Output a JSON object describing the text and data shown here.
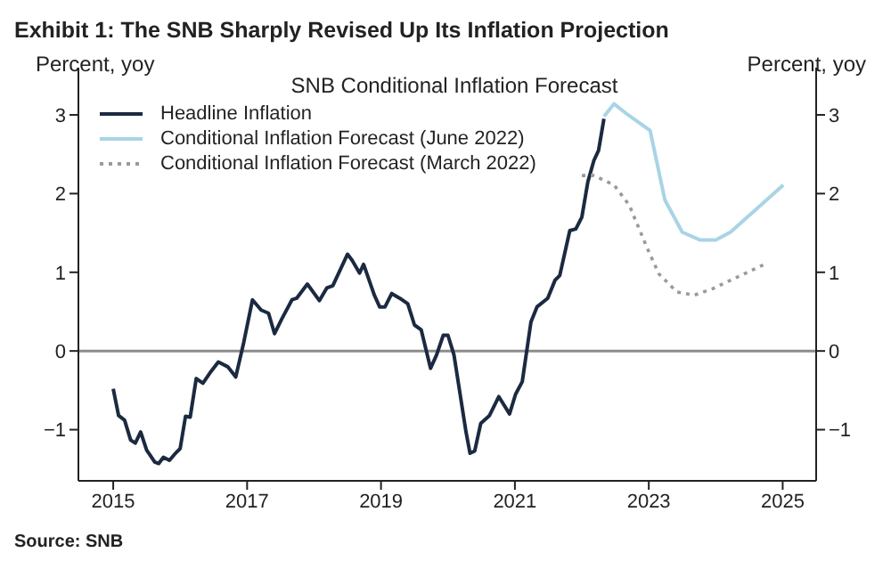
{
  "chart_data": {
    "type": "line",
    "title": "Exhibit 1: The SNB Sharply Revised Up Its Inflation Projection",
    "subtitle": "SNB Conditional Inflation Forecast",
    "ylabel": "Percent, yoy",
    "y2label": "Percent, yoy",
    "annotations": [
      "Source: SNB"
    ],
    "xlim": [
      2014.48,
      2025.5
    ],
    "xticks": [
      2015,
      2017,
      2019,
      2021,
      2023,
      2025
    ],
    "ylim": [
      -1.65,
      3.6
    ],
    "yticks": [
      -1,
      0,
      1,
      2,
      3
    ],
    "y2lim": [
      -1.65,
      3.6
    ],
    "y2ticks": [
      -1,
      0,
      1,
      2,
      3
    ],
    "legend": "top left",
    "grid": false,
    "marker": "none",
    "ref_lines": [
      {
        "axis": "y",
        "value": 0,
        "color": "#8c8c8c"
      }
    ],
    "series": [
      {
        "name": "Headline Inflation",
        "color": "#1b2a41",
        "line_style": "solid",
        "x": [
          2015.0,
          2015.08,
          2015.17,
          2015.26,
          2015.33,
          2015.41,
          2015.5,
          2015.62,
          2015.68,
          2015.75,
          2015.84,
          2015.93,
          2016.0,
          2016.08,
          2016.15,
          2016.24,
          2016.34,
          2016.46,
          2016.57,
          2016.71,
          2016.83,
          2016.95,
          2017.08,
          2017.21,
          2017.32,
          2017.41,
          2017.52,
          2017.67,
          2017.74,
          2017.9,
          2018.08,
          2018.19,
          2018.28,
          2018.5,
          2018.57,
          2018.68,
          2018.74,
          2018.9,
          2018.98,
          2019.06,
          2019.16,
          2019.28,
          2019.4,
          2019.5,
          2019.6,
          2019.74,
          2019.83,
          2019.93,
          2020.0,
          2020.09,
          2020.27,
          2020.33,
          2020.4,
          2020.49,
          2020.62,
          2020.76,
          2020.92,
          2021.01,
          2021.11,
          2021.24,
          2021.33,
          2021.49,
          2021.6,
          2021.67,
          2021.82,
          2021.91,
          2022.0,
          2022.09,
          2022.18,
          2022.25,
          2022.33
        ],
        "values": [
          -0.48,
          -0.82,
          -0.88,
          -1.13,
          -1.17,
          -1.03,
          -1.26,
          -1.41,
          -1.43,
          -1.35,
          -1.39,
          -1.3,
          -1.24,
          -0.83,
          -0.84,
          -0.35,
          -0.41,
          -0.26,
          -0.14,
          -0.2,
          -0.33,
          0.11,
          0.65,
          0.52,
          0.48,
          0.22,
          0.41,
          0.65,
          0.67,
          0.85,
          0.64,
          0.8,
          0.83,
          1.23,
          1.15,
          0.99,
          1.1,
          0.71,
          0.56,
          0.56,
          0.73,
          0.67,
          0.6,
          0.33,
          0.27,
          -0.22,
          -0.05,
          0.2,
          0.2,
          -0.05,
          -1.03,
          -1.3,
          -1.27,
          -0.92,
          -0.82,
          -0.58,
          -0.8,
          -0.55,
          -0.39,
          0.37,
          0.56,
          0.67,
          0.9,
          0.96,
          1.53,
          1.55,
          1.7,
          2.15,
          2.42,
          2.55,
          2.95
        ]
      },
      {
        "name": "Conditional Inflation Forecast (June 2022)",
        "color": "#a8d4e6",
        "line_style": "solid",
        "x": [
          2022.33,
          2022.48,
          2022.66,
          2023.02,
          2023.24,
          2023.5,
          2023.77,
          2024.0,
          2024.22,
          2025.01
        ],
        "values": [
          2.98,
          3.14,
          3.02,
          2.8,
          1.92,
          1.51,
          1.41,
          1.41,
          1.51,
          2.11
        ]
      },
      {
        "name": "Conditional Inflation Forecast (March 2022)",
        "color": "#9a9a9a",
        "line_style": "dotted",
        "x": [
          2022.0,
          2022.18,
          2022.48,
          2022.71,
          2022.97,
          2023.15,
          2023.42,
          2023.68,
          2023.95,
          2024.75
        ],
        "values": [
          2.23,
          2.23,
          2.11,
          1.85,
          1.32,
          0.98,
          0.75,
          0.71,
          0.79,
          1.11
        ]
      }
    ]
  }
}
